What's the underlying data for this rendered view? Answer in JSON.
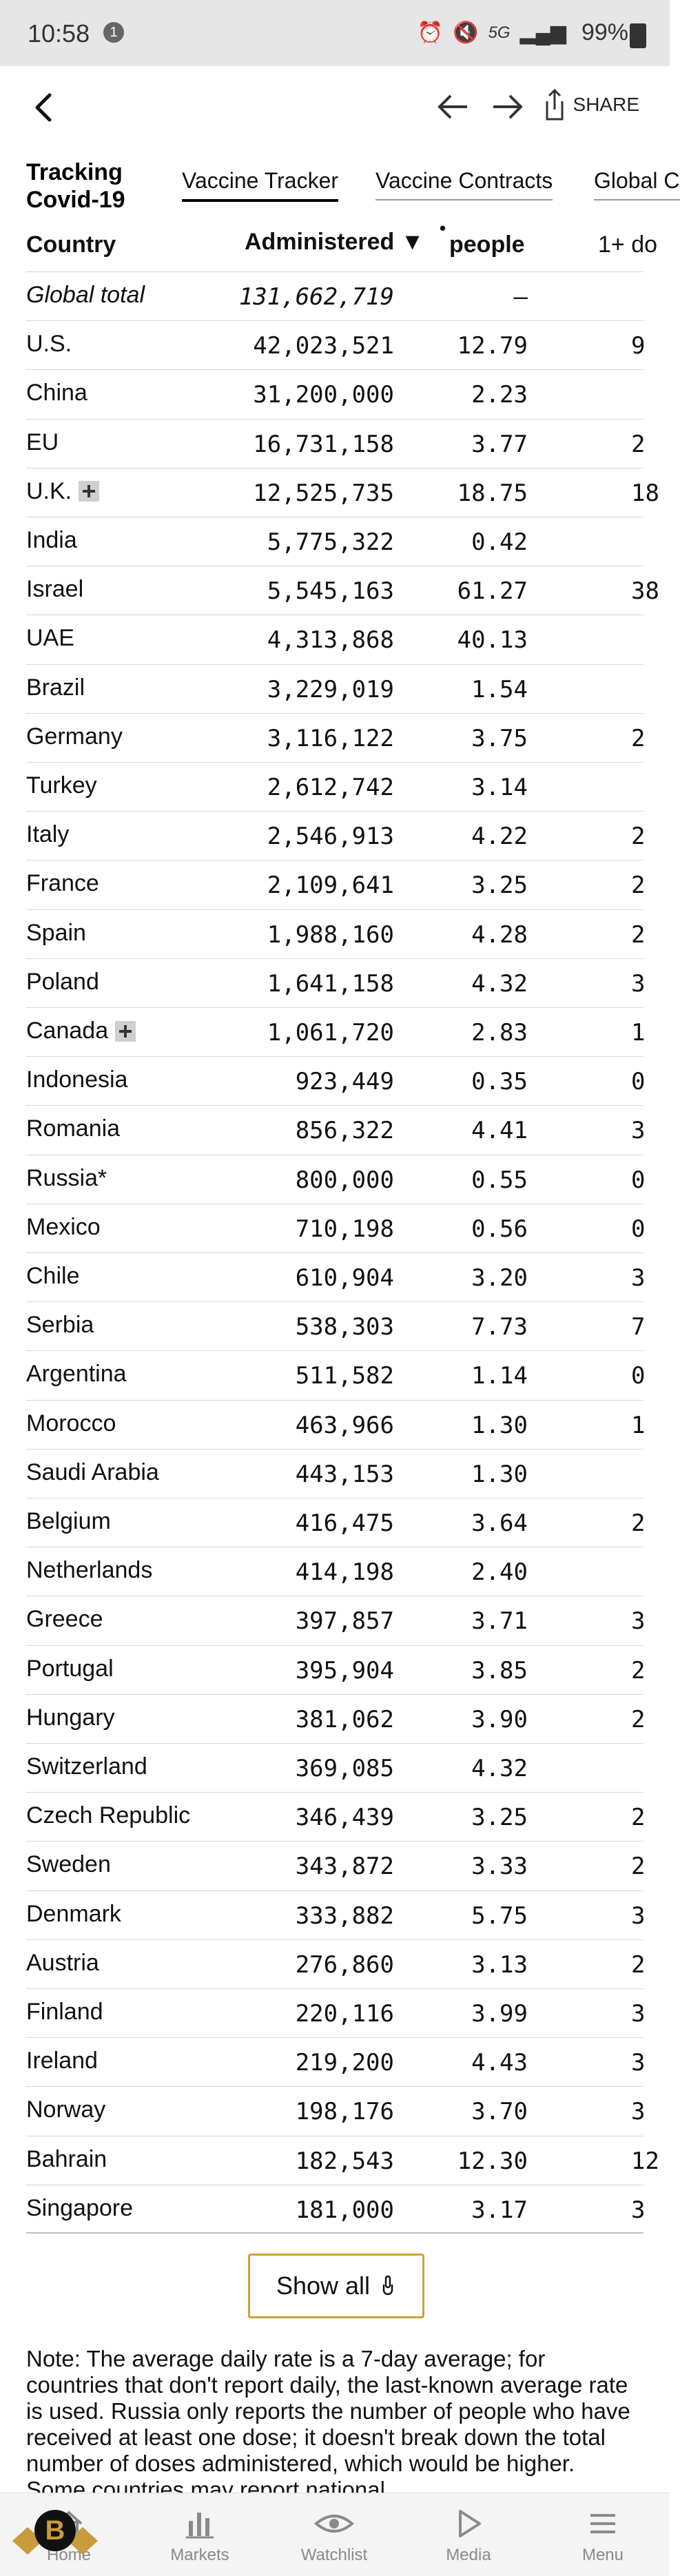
{
  "status_bar": {
    "time": "10:58",
    "notif_count": "1",
    "network": "5G",
    "battery": "99%"
  },
  "topbar": {
    "share_label": "SHARE"
  },
  "header": {
    "title_line1": "Tracking",
    "title_line2": "Covid-19",
    "tabs": [
      "Vaccine Tracker",
      "Vaccine Contracts",
      "Global C"
    ]
  },
  "columns": {
    "country": "Country",
    "administered": "Administered ▼",
    "people": "people",
    "dose": "1+ do"
  },
  "rows": [
    {
      "country": "Global total",
      "administered": "131,662,719",
      "people": "–",
      "dose": ""
    },
    {
      "country": "U.S.",
      "administered": "42,023,521",
      "people": "12.79",
      "dose": "9"
    },
    {
      "country": "China",
      "administered": "31,200,000",
      "people": "2.23",
      "dose": ""
    },
    {
      "country": "EU",
      "administered": "16,731,158",
      "people": "3.77",
      "dose": "2"
    },
    {
      "country": "U.K.",
      "administered": "12,525,735",
      "people": "18.75",
      "dose": "18"
    },
    {
      "country": "India",
      "administered": "5,775,322",
      "people": "0.42",
      "dose": ""
    },
    {
      "country": "Israel",
      "administered": "5,545,163",
      "people": "61.27",
      "dose": "38"
    },
    {
      "country": "UAE",
      "administered": "4,313,868",
      "people": "40.13",
      "dose": ""
    },
    {
      "country": "Brazil",
      "administered": "3,229,019",
      "people": "1.54",
      "dose": ""
    },
    {
      "country": "Germany",
      "administered": "3,116,122",
      "people": "3.75",
      "dose": "2"
    },
    {
      "country": "Turkey",
      "administered": "2,612,742",
      "people": "3.14",
      "dose": ""
    },
    {
      "country": "Italy",
      "administered": "2,546,913",
      "people": "4.22",
      "dose": "2"
    },
    {
      "country": "France",
      "administered": "2,109,641",
      "people": "3.25",
      "dose": "2"
    },
    {
      "country": "Spain",
      "administered": "1,988,160",
      "people": "4.28",
      "dose": "2"
    },
    {
      "country": "Poland",
      "administered": "1,641,158",
      "people": "4.32",
      "dose": "3"
    },
    {
      "country": "Canada",
      "administered": "1,061,720",
      "people": "2.83",
      "dose": "1"
    },
    {
      "country": "Indonesia",
      "administered": "923,449",
      "people": "0.35",
      "dose": "0"
    },
    {
      "country": "Romania",
      "administered": "856,322",
      "people": "4.41",
      "dose": "3"
    },
    {
      "country": "Russia*",
      "administered": "800,000",
      "people": "0.55",
      "dose": "0"
    },
    {
      "country": "Mexico",
      "administered": "710,198",
      "people": "0.56",
      "dose": "0"
    },
    {
      "country": "Chile",
      "administered": "610,904",
      "people": "3.20",
      "dose": "3"
    },
    {
      "country": "Serbia",
      "administered": "538,303",
      "people": "7.73",
      "dose": "7"
    },
    {
      "country": "Argentina",
      "administered": "511,582",
      "people": "1.14",
      "dose": "0"
    },
    {
      "country": "Morocco",
      "administered": "463,966",
      "people": "1.30",
      "dose": "1"
    },
    {
      "country": "Saudi Arabia",
      "administered": "443,153",
      "people": "1.30",
      "dose": ""
    },
    {
      "country": "Belgium",
      "administered": "416,475",
      "people": "3.64",
      "dose": "2"
    },
    {
      "country": "Netherlands",
      "administered": "414,198",
      "people": "2.40",
      "dose": ""
    },
    {
      "country": "Greece",
      "administered": "397,857",
      "people": "3.71",
      "dose": "3"
    },
    {
      "country": "Portugal",
      "administered": "395,904",
      "people": "3.85",
      "dose": "2"
    },
    {
      "country": "Hungary",
      "administered": "381,062",
      "people": "3.90",
      "dose": "2"
    },
    {
      "country": "Switzerland",
      "administered": "369,085",
      "people": "4.32",
      "dose": ""
    },
    {
      "country": "Czech Republic",
      "administered": "346,439",
      "people": "3.25",
      "dose": "2"
    },
    {
      "country": "Sweden",
      "administered": "343,872",
      "people": "3.33",
      "dose": "2"
    },
    {
      "country": "Denmark",
      "administered": "333,882",
      "people": "5.75",
      "dose": "3"
    },
    {
      "country": "Austria",
      "administered": "276,860",
      "people": "3.13",
      "dose": "2"
    },
    {
      "country": "Finland",
      "administered": "220,116",
      "people": "3.99",
      "dose": "3"
    },
    {
      "country": "Ireland",
      "administered": "219,200",
      "people": "4.43",
      "dose": "3"
    },
    {
      "country": "Norway",
      "administered": "198,176",
      "people": "3.70",
      "dose": "3"
    },
    {
      "country": "Bahrain",
      "administered": "182,543",
      "people": "12.30",
      "dose": "12"
    },
    {
      "country": "Singapore",
      "administered": "181,000",
      "people": "3.17",
      "dose": "3"
    }
  ],
  "show_all_label": "Show all",
  "note": "Note: The average daily rate is a 7-day average; for countries that don't report daily, the last-known average rate is used. Russia only reports the number of people who have received at least one dose; it doesn't break down the total number of doses administered, which would be higher. Some countries may report national",
  "bottom_nav": [
    {
      "label": "Home",
      "icon": "home-icon"
    },
    {
      "label": "Markets",
      "icon": "markets-icon"
    },
    {
      "label": "Watchlist",
      "icon": "watchlist-icon"
    },
    {
      "label": "Media",
      "icon": "media-icon"
    },
    {
      "label": "Menu",
      "icon": "menu-icon"
    }
  ]
}
